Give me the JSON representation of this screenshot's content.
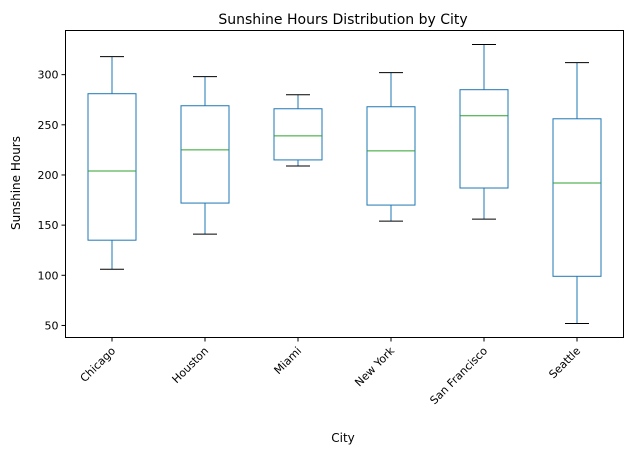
{
  "chart_data": {
    "type": "box",
    "title": "Sunshine Hours Distribution by City",
    "xlabel": "City",
    "ylabel": "Sunshine Hours",
    "ylim": [
      38,
      344
    ],
    "yticks": [
      50,
      100,
      150,
      200,
      250,
      300
    ],
    "grid": false,
    "categories": [
      "Chicago",
      "Houston",
      "Miami",
      "New York",
      "San Francisco",
      "Seattle"
    ],
    "boxes": [
      {
        "whisker_low": 106,
        "q1": 135,
        "median": 204,
        "q3": 281,
        "whisker_high": 318
      },
      {
        "whisker_low": 141,
        "q1": 172,
        "median": 225,
        "q3": 269,
        "whisker_high": 298
      },
      {
        "whisker_low": 209,
        "q1": 215,
        "median": 239,
        "q3": 266,
        "whisker_high": 280
      },
      {
        "whisker_low": 154,
        "q1": 170,
        "median": 224,
        "q3": 268,
        "whisker_high": 302
      },
      {
        "whisker_low": 156,
        "q1": 187,
        "median": 259,
        "q3": 285,
        "whisker_high": 330
      },
      {
        "whisker_low": 52,
        "q1": 99,
        "median": 192,
        "q3": 256,
        "whisker_high": 312
      }
    ],
    "colors": {
      "box": "#1f77b4",
      "median": "#2ca02c",
      "whisker": "#1f77b4",
      "cap": "#000000"
    }
  }
}
